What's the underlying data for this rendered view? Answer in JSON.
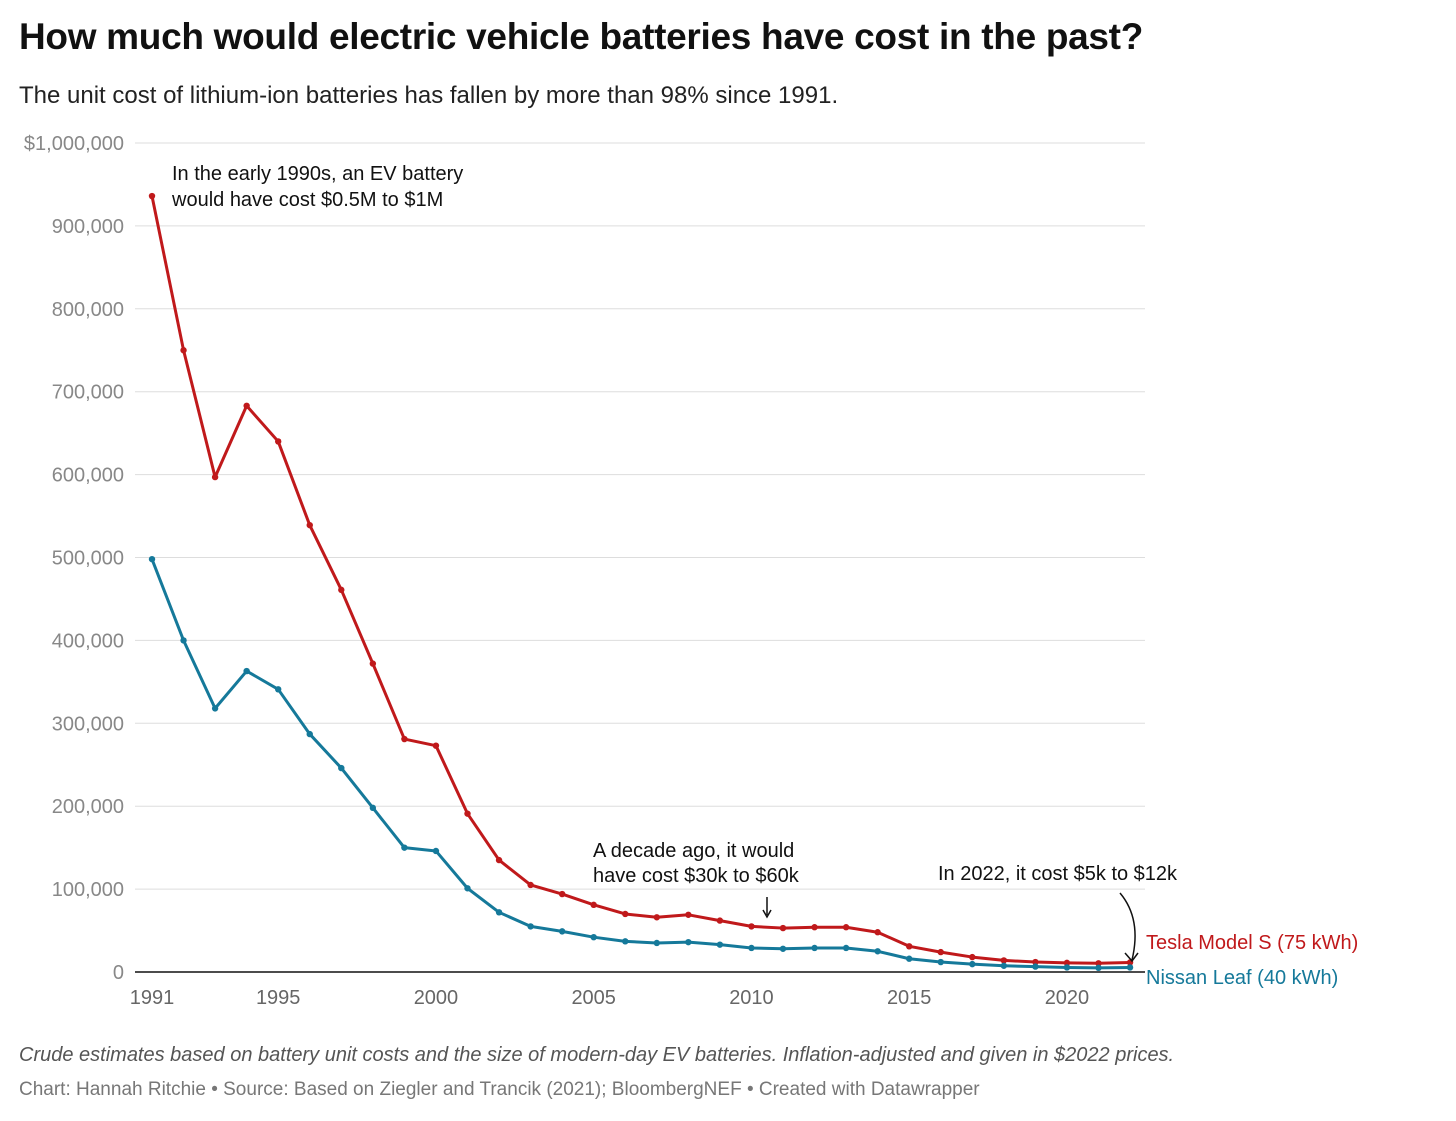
{
  "title": "How much would electric vehicle batteries have cost in the past?",
  "subtitle": "The unit cost of lithium-ion batteries has fallen by more than 98% since 1991.",
  "notes": "Crude estimates based on battery unit costs and the size of modern-day EV batteries. Inflation-adjusted and given in $2022 prices.",
  "credit": "Chart: Hannah Ritchie • Source: Based on Ziegler and Trancik (2021); BloombergNEF • Created with Datawrapper",
  "chart_data": {
    "type": "line",
    "title": "How much would electric vehicle batteries have cost in the past?",
    "xlim": [
      1991,
      2022
    ],
    "ylim": [
      0,
      1000000
    ],
    "grid": true,
    "x_ticks": [
      "1991",
      "1995",
      "2000",
      "2005",
      "2010",
      "2015",
      "2020"
    ],
    "y_ticks": [
      "$1,000,000",
      "900,000",
      "800,000",
      "700,000",
      "600,000",
      "500,000",
      "400,000",
      "300,000",
      "200,000",
      "100,000",
      "0"
    ],
    "x": [
      1991,
      1992,
      1993,
      1994,
      1995,
      1996,
      1997,
      1998,
      1999,
      2000,
      2001,
      2002,
      2003,
      2004,
      2005,
      2006,
      2007,
      2008,
      2009,
      2010,
      2011,
      2012,
      2013,
      2014,
      2015,
      2016,
      2017,
      2018,
      2019,
      2020,
      2021,
      2022
    ],
    "series": [
      {
        "name": "Tesla Model S (75 kWh)",
        "color": "#c0191b",
        "values": [
          936000,
          750000,
          597000,
          683000,
          640000,
          539000,
          461000,
          372000,
          281000,
          273000,
          191000,
          135000,
          105000,
          94000,
          81000,
          70000,
          66000,
          69000,
          62000,
          55000,
          53000,
          54000,
          54000,
          48000,
          31000,
          24000,
          18000,
          14000,
          12000,
          11000,
          10500,
          11500
        ]
      },
      {
        "name": "Nissan Leaf (40 kWh)",
        "color": "#15799a",
        "values": [
          498000,
          400000,
          318000,
          363000,
          341000,
          287000,
          246000,
          198000,
          150000,
          146000,
          101000,
          72000,
          55000,
          49000,
          42000,
          37000,
          35000,
          36000,
          33000,
          29000,
          28000,
          29000,
          29000,
          25000,
          16000,
          12000,
          9500,
          7500,
          6500,
          5500,
          5000,
          5500
        ]
      }
    ],
    "annotations": [
      {
        "lines": [
          "In the early 1990s, an EV battery",
          "would have cost $0.5M to $1M"
        ]
      },
      {
        "lines": [
          "A decade ago, it would",
          "have cost $30k to $60k"
        ]
      },
      {
        "lines": [
          "In 2022, it cost $5k to $12k"
        ]
      }
    ],
    "legend": "direct-labels-right"
  }
}
